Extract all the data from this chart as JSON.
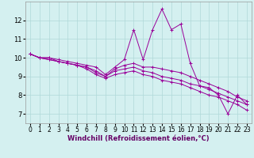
{
  "xlabel": "Windchill (Refroidissement éolien,°C)",
  "background_color": "#d4f0f0",
  "grid_color": "#b0d8d8",
  "line_color": "#990099",
  "xlim": [
    -0.5,
    23.5
  ],
  "ylim": [
    6.5,
    13.0
  ],
  "yticks": [
    7,
    8,
    9,
    10,
    11,
    12
  ],
  "xticks": [
    0,
    1,
    2,
    3,
    4,
    5,
    6,
    7,
    8,
    9,
    10,
    11,
    12,
    13,
    14,
    15,
    16,
    17,
    18,
    19,
    20,
    21,
    22,
    23
  ],
  "series": [
    [
      10.2,
      10.0,
      10.0,
      9.9,
      9.8,
      9.7,
      9.6,
      9.5,
      9.1,
      9.5,
      9.9,
      11.5,
      9.9,
      11.5,
      12.6,
      11.5,
      11.8,
      9.7,
      8.5,
      8.4,
      8.0,
      7.0,
      8.0,
      7.5
    ],
    [
      10.2,
      10.0,
      10.0,
      9.8,
      9.7,
      9.6,
      9.5,
      9.3,
      9.0,
      9.4,
      9.6,
      9.7,
      9.5,
      9.5,
      9.4,
      9.3,
      9.2,
      9.0,
      8.8,
      8.6,
      8.4,
      8.2,
      7.9,
      7.7
    ],
    [
      10.2,
      10.0,
      9.9,
      9.8,
      9.7,
      9.6,
      9.5,
      9.2,
      9.0,
      9.3,
      9.4,
      9.5,
      9.3,
      9.2,
      9.0,
      8.9,
      8.8,
      8.6,
      8.5,
      8.3,
      8.1,
      7.9,
      7.7,
      7.5
    ],
    [
      10.2,
      10.0,
      9.9,
      9.8,
      9.7,
      9.6,
      9.4,
      9.1,
      8.9,
      9.1,
      9.2,
      9.3,
      9.1,
      9.0,
      8.8,
      8.7,
      8.6,
      8.4,
      8.2,
      8.0,
      7.9,
      7.7,
      7.5,
      7.2
    ]
  ],
  "xlabel_fontsize": 6,
  "tick_fontsize": 5.5
}
